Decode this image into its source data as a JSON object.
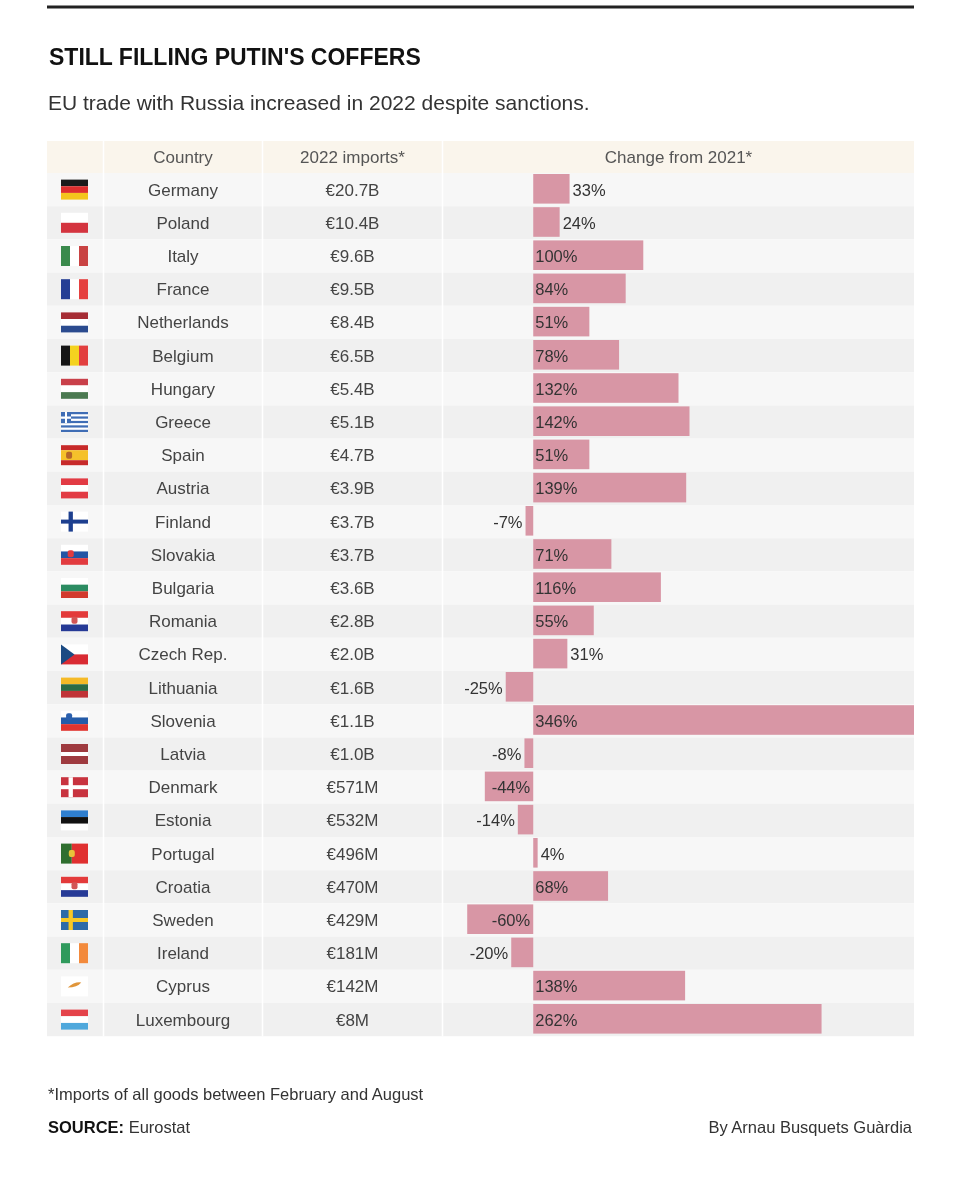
{
  "chart_data": {
    "type": "bar",
    "orientation": "horizontal",
    "title": "STILL FILLING PUTIN'S COFFERS",
    "subtitle": "EU trade with Russia increased in 2022 despite sanctions.",
    "ylabel": "Country",
    "y2label": "2022 imports*",
    "xlabel": "Change from 2021*",
    "categories": [
      "Germany",
      "Poland",
      "Italy",
      "France",
      "Netherlands",
      "Belgium",
      "Hungary",
      "Greece",
      "Spain",
      "Austria",
      "Finland",
      "Slovakia",
      "Bulgaria",
      "Romania",
      "Czech Rep.",
      "Lithuania",
      "Slovenia",
      "Latvia",
      "Denmark",
      "Estonia",
      "Portugal",
      "Croatia",
      "Sweden",
      "Ireland",
      "Cyprus",
      "Luxembourg"
    ],
    "y2_categories": [
      "€20.7B",
      "€10.4B",
      "€9.6B",
      "€9.5B",
      "€8.4B",
      "€6.5B",
      "€5.4B",
      "€5.1B",
      "€4.7B",
      "€3.9B",
      "€3.7B",
      "€3.7B",
      "€3.6B",
      "€2.8B",
      "€2.0B",
      "€1.6B",
      "€1.1B",
      "€1.0B",
      "€571M",
      "€532M",
      "€496M",
      "€470M",
      "€429M",
      "€181M",
      "€142M",
      "€8M"
    ],
    "values": [
      33,
      24,
      100,
      84,
      51,
      78,
      132,
      142,
      51,
      139,
      -7,
      71,
      116,
      55,
      31,
      -25,
      346,
      -8,
      -44,
      -14,
      4,
      68,
      -60,
      -20,
      138,
      262
    ],
    "color": "#d896a5",
    "value_labels": [
      "33%",
      "24%",
      "100%",
      "84%",
      "51%",
      "78%",
      "132%",
      "142%",
      "51%",
      "139%",
      "-7%",
      "71%",
      "116%",
      "55%",
      "31%",
      "-25%",
      "346%",
      "-8%",
      "-44%",
      "-14%",
      "4%",
      "68%",
      "-60%",
      "-20%",
      "138%",
      "262%"
    ],
    "xlim": [
      -82,
      346
    ],
    "annotations": [
      "*Imports of all goods between February and August",
      "SOURCE: Eurostat",
      "By Arnau Busquets Guàrdia"
    ]
  }
}
